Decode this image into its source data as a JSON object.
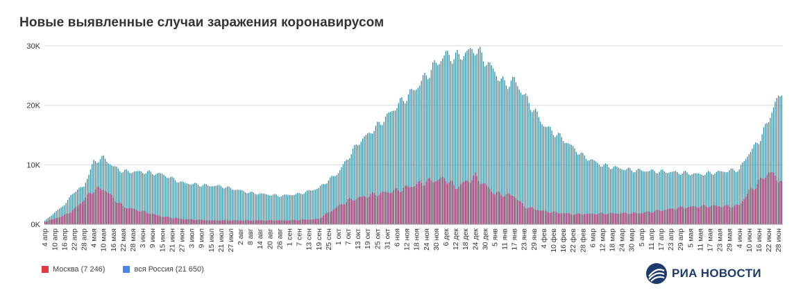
{
  "colors": {
    "moscow": "#8f1f57",
    "russia": "#2d8aa0",
    "grid": "#d9d9d9",
    "logo": "#1c3a6b"
  },
  "brand": "РИА НОВОСТИ",
  "chart_data": {
    "type": "bar",
    "title": "Новые выявленные случаи заражения коронавирусом",
    "xlabel": "",
    "ylabel": "",
    "ylim": [
      0,
      30000
    ],
    "yticks": [
      "0K",
      "10K",
      "20K",
      "30K"
    ],
    "grid": true,
    "legend_position": "bottom-left",
    "x_start": "2020-04-04",
    "x_end": "2021-06-30",
    "x_tick_labels": [
      "4 апр",
      "10 апр",
      "16 апр",
      "22 апр",
      "28 апр",
      "4 мая",
      "10 мая",
      "16 мая",
      "22 мая",
      "28 мая",
      "3 июн",
      "9 июн",
      "15 июн",
      "21 июн",
      "27 июн",
      "3 июл",
      "9 июл",
      "15 июл",
      "21 июл",
      "27 июл",
      "2 авг",
      "8 авг",
      "14 авг",
      "20 авг",
      "26 авг",
      "1 сен",
      "7 сен",
      "13 сен",
      "19 сен",
      "25 сен",
      "1 окт",
      "7 окт",
      "13 окт",
      "19 окт",
      "25 окт",
      "31 окт",
      "6 ноя",
      "12 ноя",
      "18 ноя",
      "24 ноя",
      "30 ноя",
      "6 дек",
      "12 дек",
      "18 дек",
      "24 дек",
      "30 дек",
      "5 янв",
      "11 янв",
      "17 янв",
      "23 янв",
      "29 янв",
      "4 фев",
      "10 фев",
      "16 фев",
      "22 фев",
      "28 фев",
      "6 мар",
      "12 мар",
      "18 мар",
      "24 мар",
      "30 мар",
      "5 апр",
      "11 апр",
      "17 апр",
      "23 апр",
      "29 апр",
      "5 мая",
      "11 мая",
      "17 мая",
      "23 мая",
      "29 мая",
      "4 июн",
      "10 июн",
      "16 июн",
      "22 июн",
      "28 июн"
    ],
    "series": [
      {
        "name": "Москва (7 246)",
        "color": "#8f1f57",
        "keypoints": [
          {
            "x": "2020-04-04",
            "y": 400
          },
          {
            "x": "2020-04-16",
            "y": 1500
          },
          {
            "x": "2020-04-22",
            "y": 2500
          },
          {
            "x": "2020-05-04",
            "y": 5800
          },
          {
            "x": "2020-05-10",
            "y": 6000
          },
          {
            "x": "2020-05-16",
            "y": 4400
          },
          {
            "x": "2020-05-22",
            "y": 3000
          },
          {
            "x": "2020-06-01",
            "y": 2300
          },
          {
            "x": "2020-06-15",
            "y": 1300
          },
          {
            "x": "2020-06-27",
            "y": 900
          },
          {
            "x": "2020-07-15",
            "y": 650
          },
          {
            "x": "2020-08-08",
            "y": 650
          },
          {
            "x": "2020-09-01",
            "y": 650
          },
          {
            "x": "2020-09-19",
            "y": 900
          },
          {
            "x": "2020-09-25",
            "y": 2000
          },
          {
            "x": "2020-10-07",
            "y": 4000
          },
          {
            "x": "2020-10-19",
            "y": 4800
          },
          {
            "x": "2020-11-06",
            "y": 5700
          },
          {
            "x": "2020-11-24",
            "y": 7200
          },
          {
            "x": "2020-12-06",
            "y": 7700
          },
          {
            "x": "2020-12-12",
            "y": 6200
          },
          {
            "x": "2020-12-24",
            "y": 8000
          },
          {
            "x": "2021-01-05",
            "y": 5200
          },
          {
            "x": "2021-01-17",
            "y": 4800
          },
          {
            "x": "2021-01-23",
            "y": 3000
          },
          {
            "x": "2021-02-04",
            "y": 2200
          },
          {
            "x": "2021-02-22",
            "y": 1700
          },
          {
            "x": "2021-03-12",
            "y": 1800
          },
          {
            "x": "2021-04-05",
            "y": 1900
          },
          {
            "x": "2021-04-29",
            "y": 2800
          },
          {
            "x": "2021-05-17",
            "y": 3100
          },
          {
            "x": "2021-05-29",
            "y": 3000
          },
          {
            "x": "2021-06-04",
            "y": 3200
          },
          {
            "x": "2021-06-10",
            "y": 5500
          },
          {
            "x": "2021-06-16",
            "y": 7000
          },
          {
            "x": "2021-06-22",
            "y": 8800
          },
          {
            "x": "2021-06-30",
            "y": 7246
          }
        ]
      },
      {
        "name": "вся Россия (21 650)",
        "color": "#2d8aa0",
        "keypoints": [
          {
            "x": "2020-04-04",
            "y": 600
          },
          {
            "x": "2020-04-16",
            "y": 3300
          },
          {
            "x": "2020-04-22",
            "y": 5500
          },
          {
            "x": "2020-04-28",
            "y": 6400
          },
          {
            "x": "2020-05-04",
            "y": 10500
          },
          {
            "x": "2020-05-10",
            "y": 11200
          },
          {
            "x": "2020-05-16",
            "y": 9700
          },
          {
            "x": "2020-05-22",
            "y": 8900
          },
          {
            "x": "2020-06-03",
            "y": 8800
          },
          {
            "x": "2020-06-15",
            "y": 8400
          },
          {
            "x": "2020-06-27",
            "y": 7000
          },
          {
            "x": "2020-07-09",
            "y": 6600
          },
          {
            "x": "2020-07-21",
            "y": 6400
          },
          {
            "x": "2020-08-08",
            "y": 5300
          },
          {
            "x": "2020-08-26",
            "y": 4800
          },
          {
            "x": "2020-09-07",
            "y": 5100
          },
          {
            "x": "2020-09-19",
            "y": 6100
          },
          {
            "x": "2020-10-01",
            "y": 8700
          },
          {
            "x": "2020-10-13",
            "y": 13600
          },
          {
            "x": "2020-10-25",
            "y": 16500
          },
          {
            "x": "2020-11-06",
            "y": 19900
          },
          {
            "x": "2020-11-18",
            "y": 23000
          },
          {
            "x": "2020-11-30",
            "y": 27000
          },
          {
            "x": "2020-12-06",
            "y": 28500
          },
          {
            "x": "2020-12-12",
            "y": 28000
          },
          {
            "x": "2020-12-24",
            "y": 29500
          },
          {
            "x": "2021-01-01",
            "y": 27000
          },
          {
            "x": "2021-01-11",
            "y": 23500
          },
          {
            "x": "2021-01-17",
            "y": 24200
          },
          {
            "x": "2021-01-29",
            "y": 19200
          },
          {
            "x": "2021-02-04",
            "y": 16700
          },
          {
            "x": "2021-02-16",
            "y": 14300
          },
          {
            "x": "2021-02-28",
            "y": 11500
          },
          {
            "x": "2021-03-12",
            "y": 9900
          },
          {
            "x": "2021-03-30",
            "y": 9100
          },
          {
            "x": "2021-04-23",
            "y": 8800
          },
          {
            "x": "2021-05-11",
            "y": 8400
          },
          {
            "x": "2021-05-29",
            "y": 9000
          },
          {
            "x": "2021-06-04",
            "y": 9200
          },
          {
            "x": "2021-06-10",
            "y": 12000
          },
          {
            "x": "2021-06-16",
            "y": 14000
          },
          {
            "x": "2021-06-22",
            "y": 17500
          },
          {
            "x": "2021-06-26",
            "y": 20500
          },
          {
            "x": "2021-06-30",
            "y": 21650
          }
        ]
      }
    ]
  }
}
